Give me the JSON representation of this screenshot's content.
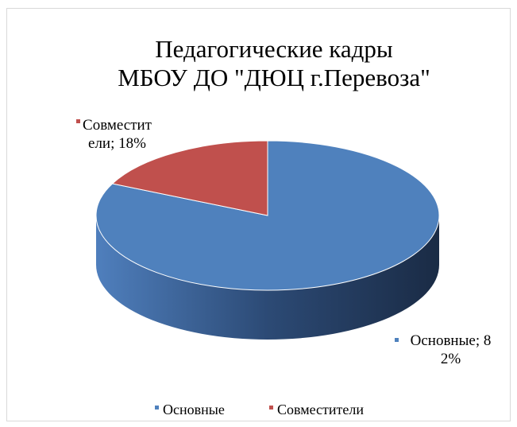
{
  "chart_data": {
    "type": "pie",
    "title": [
      "Педагогические кадры",
      "МБОУ ДО \"ДЮЦ г.Перевоза\""
    ],
    "categories": [
      "Основные",
      "Совместители"
    ],
    "values": [
      82,
      18
    ],
    "value_labels": [
      "82%",
      "18%"
    ],
    "data_label_separator": "; ",
    "colors": [
      "#4f81bd",
      "#c0504d"
    ],
    "legend": "bottom"
  }
}
